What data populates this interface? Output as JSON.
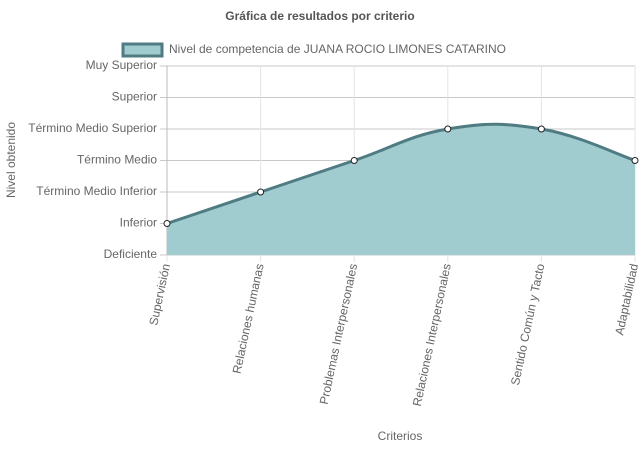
{
  "chart_data": {
    "type": "area",
    "title": "Gráfica de resultados por criterio",
    "x_label": "Criterios",
    "y_label": "Nivel obtenido",
    "categories": [
      "Supervisión",
      "Relaciones humanas",
      "Problemas Interpersonales",
      "Relaciones Interpersonales",
      "Sentido Común y Tacto",
      "Adaptabilidad"
    ],
    "series": [
      {
        "name": "Nivel de competencia de JUANA ROCIO LIMONES CATARINO",
        "color": "#4f7b82",
        "fill": "#a0ccd0",
        "values": [
          1,
          2,
          3,
          4,
          4,
          3
        ]
      }
    ],
    "ylim": [
      0,
      6
    ],
    "yticks": [
      {
        "value": 0,
        "label": "Deficiente"
      },
      {
        "value": 1,
        "label": "Inferior"
      },
      {
        "value": 2,
        "label": "Término Medio Inferior"
      },
      {
        "value": 3,
        "label": "Término Medio"
      },
      {
        "value": 4,
        "label": "Término Medio Superior"
      },
      {
        "value": 5,
        "label": "Superior"
      },
      {
        "value": 6,
        "label": "Muy Superior"
      }
    ],
    "grid": true,
    "legend": "top"
  }
}
